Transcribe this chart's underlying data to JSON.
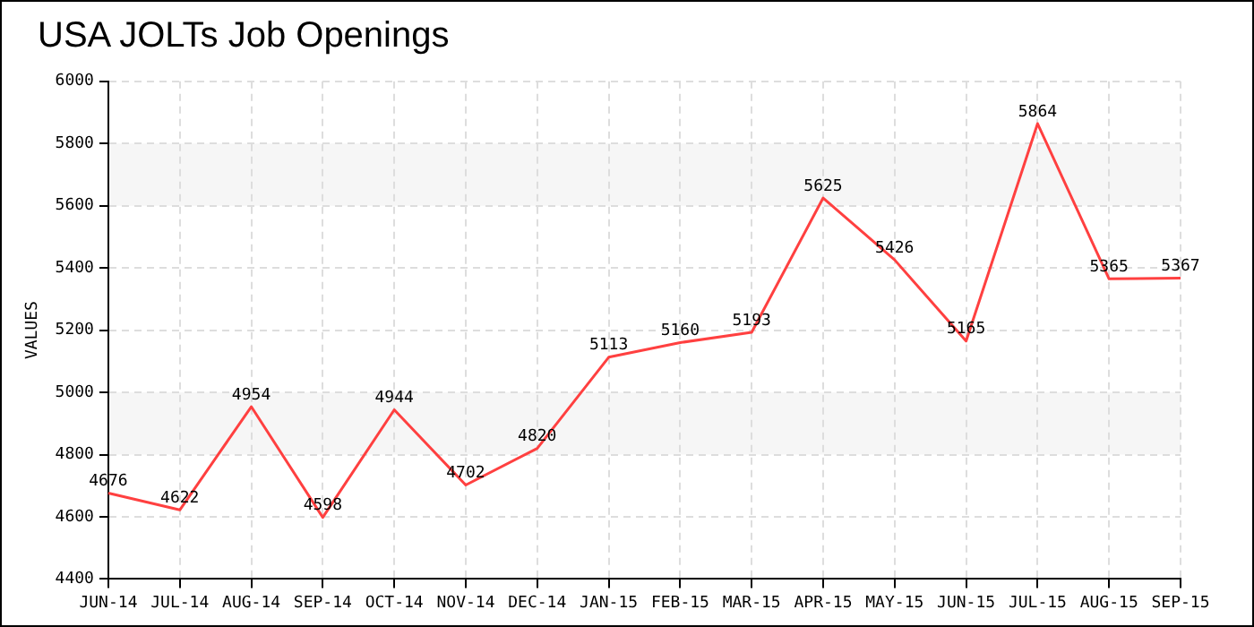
{
  "chart_data": {
    "type": "line",
    "title": "USA JOLTs Job Openings",
    "ylabel": "VALUES",
    "categories": [
      "JUN-14",
      "JUL-14",
      "AUG-14",
      "SEP-14",
      "OCT-14",
      "NOV-14",
      "DEC-14",
      "JAN-15",
      "FEB-15",
      "MAR-15",
      "APR-15",
      "MAY-15",
      "JUN-15",
      "JUL-15",
      "AUG-15",
      "SEP-15"
    ],
    "series": [
      {
        "color": "#ff4040",
        "values": [
          4676,
          4622,
          4954,
          4598,
          4944,
          4702,
          4820,
          5113,
          5160,
          5193,
          5625,
          5426,
          5165,
          5864,
          5365,
          5367
        ]
      }
    ],
    "ylim": [
      4400,
      6000
    ],
    "yticks": [
      4400,
      4600,
      4800,
      5000,
      5200,
      5400,
      5600,
      5800,
      6000
    ],
    "grid": true,
    "data_labels": true,
    "marker": "none",
    "line_style": "solid"
  }
}
